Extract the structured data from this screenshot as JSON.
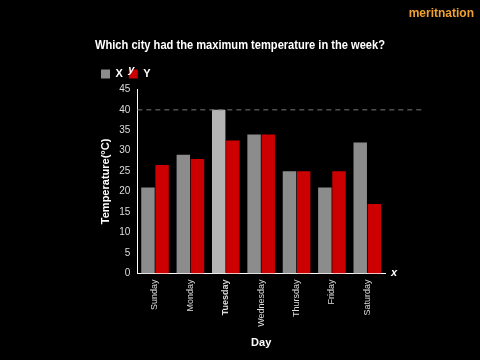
{
  "chart_data": {
    "type": "bar",
    "title": "Which city had the maximum temperature in the week?",
    "x_label": "Day",
    "y_label": "Temperature(°C)",
    "axis_names": {
      "x": "x",
      "y": "y"
    },
    "annotations": [
      "meritnation"
    ],
    "categories": [
      "Sunday",
      "Monday",
      "Tuesday",
      "Wednesday",
      "Thursday",
      "Friday",
      "Saturday"
    ],
    "series": [
      {
        "name": "X",
        "color": "#8c8c8c",
        "colors": [
          "#8c8c8c",
          "#8c8c8c",
          "#b4b4b4",
          "#8c8c8c",
          "#8c8c8c",
          "#8c8c8c",
          "#8c8c8c"
        ],
        "values": [
          21,
          29,
          40,
          34,
          25,
          21,
          32
        ]
      },
      {
        "name": "Y",
        "color": "#cc0000",
        "values": [
          26.5,
          28,
          32.5,
          34,
          25,
          25,
          17
        ]
      }
    ],
    "reference_line": 40,
    "ylim": [
      0,
      45
    ],
    "yticks": [
      0,
      5,
      10,
      15,
      20,
      25,
      30,
      35,
      40,
      45
    ],
    "grid": false,
    "legend": "top-left"
  }
}
